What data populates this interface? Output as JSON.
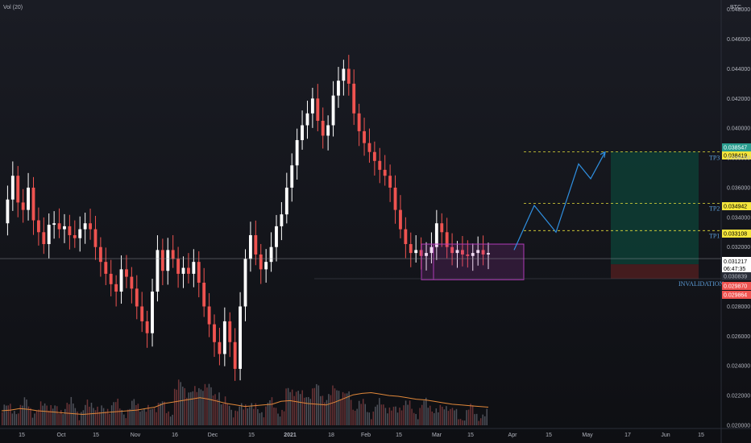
{
  "header": {
    "indicator_label": "Vol (20)",
    "currency": "BTC"
  },
  "colors": {
    "up": "#ffffff",
    "down": "#ef5350",
    "long_zone": "#0d3b33",
    "stop_zone": "#4a1d1f",
    "box": "#b03ab8",
    "arrow": "#2f8fe0"
  },
  "chart_data": {
    "type": "candlestick",
    "ylim": [
      0.02,
      0.0482
    ],
    "y_ticks": [
      "0.048000",
      "0.046000",
      "0.044000",
      "0.042000",
      "0.040000",
      "0.038000",
      "0.036000",
      "0.034000",
      "0.032000",
      "0.028000",
      "0.026000",
      "0.024000",
      "0.022000",
      "0.020000"
    ],
    "x_ticks": [
      "15",
      "Oct",
      "15",
      "Nov",
      "16",
      "Dec",
      "15",
      "2021",
      "18",
      "Feb",
      "15",
      "Mar",
      "15",
      "Apr",
      "15",
      "May",
      "17",
      "Jun",
      "15"
    ],
    "close_path": [
      0.0336,
      0.0352,
      0.0368,
      0.035,
      0.0345,
      0.036,
      0.0338,
      0.033,
      0.0322,
      0.0335,
      0.0336,
      0.0332,
      0.0334,
      0.0328,
      0.0326,
      0.0332,
      0.0336,
      0.0332,
      0.032,
      0.031,
      0.0302,
      0.0295,
      0.029,
      0.0305,
      0.03,
      0.0292,
      0.028,
      0.027,
      0.0262,
      0.029,
      0.0318,
      0.0304,
      0.0318,
      0.0312,
      0.0302,
      0.0306,
      0.0302,
      0.031,
      0.0296,
      0.028,
      0.0268,
      0.0256,
      0.0248,
      0.027,
      0.0256,
      0.0238,
      0.028,
      0.0312,
      0.0328,
      0.0315,
      0.0305,
      0.031,
      0.032,
      0.0334,
      0.0342,
      0.036,
      0.0375,
      0.0392,
      0.0402,
      0.041,
      0.042,
      0.0405,
      0.0395,
      0.0402,
      0.0422,
      0.0432,
      0.044,
      0.043,
      0.041,
      0.0398,
      0.039,
      0.0384,
      0.0378,
      0.0372,
      0.0368,
      0.036,
      0.0345,
      0.0332,
      0.0322,
      0.0316,
      0.0318,
      0.0314,
      0.0316,
      0.032,
      0.0336,
      0.033,
      0.032,
      0.0316,
      0.0318,
      0.0315,
      0.0314,
      0.0316,
      0.0318,
      0.0315,
      0.0316
    ],
    "volume_ma": [
      0.2,
      0.21,
      0.23,
      0.22,
      0.2,
      0.19,
      0.18,
      0.17,
      0.16,
      0.15,
      0.16,
      0.17,
      0.18,
      0.19,
      0.2,
      0.21,
      0.23,
      0.25,
      0.3,
      0.32,
      0.34,
      0.36,
      0.38,
      0.36,
      0.33,
      0.3,
      0.28,
      0.26,
      0.27,
      0.28,
      0.29,
      0.33,
      0.34,
      0.32,
      0.3,
      0.29,
      0.28,
      0.32,
      0.37,
      0.42,
      0.44,
      0.45,
      0.43,
      0.41,
      0.4,
      0.38,
      0.36,
      0.35,
      0.33,
      0.31,
      0.29,
      0.28,
      0.27,
      0.26,
      0.25
    ],
    "last_price": {
      "value": "0.031217",
      "countdown": "06:47:35"
    },
    "price_tags": [
      {
        "label": "0.038547",
        "value": 0.038547,
        "bg": "#2a9d8f",
        "fg": "#ffffff"
      },
      {
        "label": "0.038419",
        "value": 0.038419,
        "bg": "#f5e63c",
        "fg": "#000000"
      },
      {
        "label": "0.034942",
        "value": 0.034942,
        "bg": "#f5e63c",
        "fg": "#000000"
      },
      {
        "label": "0.033108",
        "value": 0.033108,
        "bg": "#f5e63c",
        "fg": "#000000"
      },
      {
        "label": "0.030839",
        "value": 0.030839,
        "bg": "#2a2e39",
        "fg": "#b2b5be"
      },
      {
        "label": "0.029870",
        "value": 0.02987,
        "bg": "#ef5350",
        "fg": "#ffffff"
      },
      {
        "label": "0.029864",
        "value": 0.029864,
        "bg": "#ef5350",
        "fg": "#ffffff"
      }
    ],
    "annotations": {
      "tp3": {
        "label": "TP3",
        "value": 0.038419
      },
      "tp2": {
        "label": "TP2",
        "value": 0.034942
      },
      "tp1": {
        "label": "TP1",
        "value": 0.033108
      },
      "invalidation": {
        "label": "INVALIDATION",
        "value": 0.02987
      },
      "entry": 0.03084,
      "consolidation_box": {
        "top": 0.0322,
        "bottom": 0.0298
      },
      "projection": [
        0.0318,
        0.0348,
        0.033,
        0.0376,
        0.0366,
        0.0384
      ]
    }
  }
}
